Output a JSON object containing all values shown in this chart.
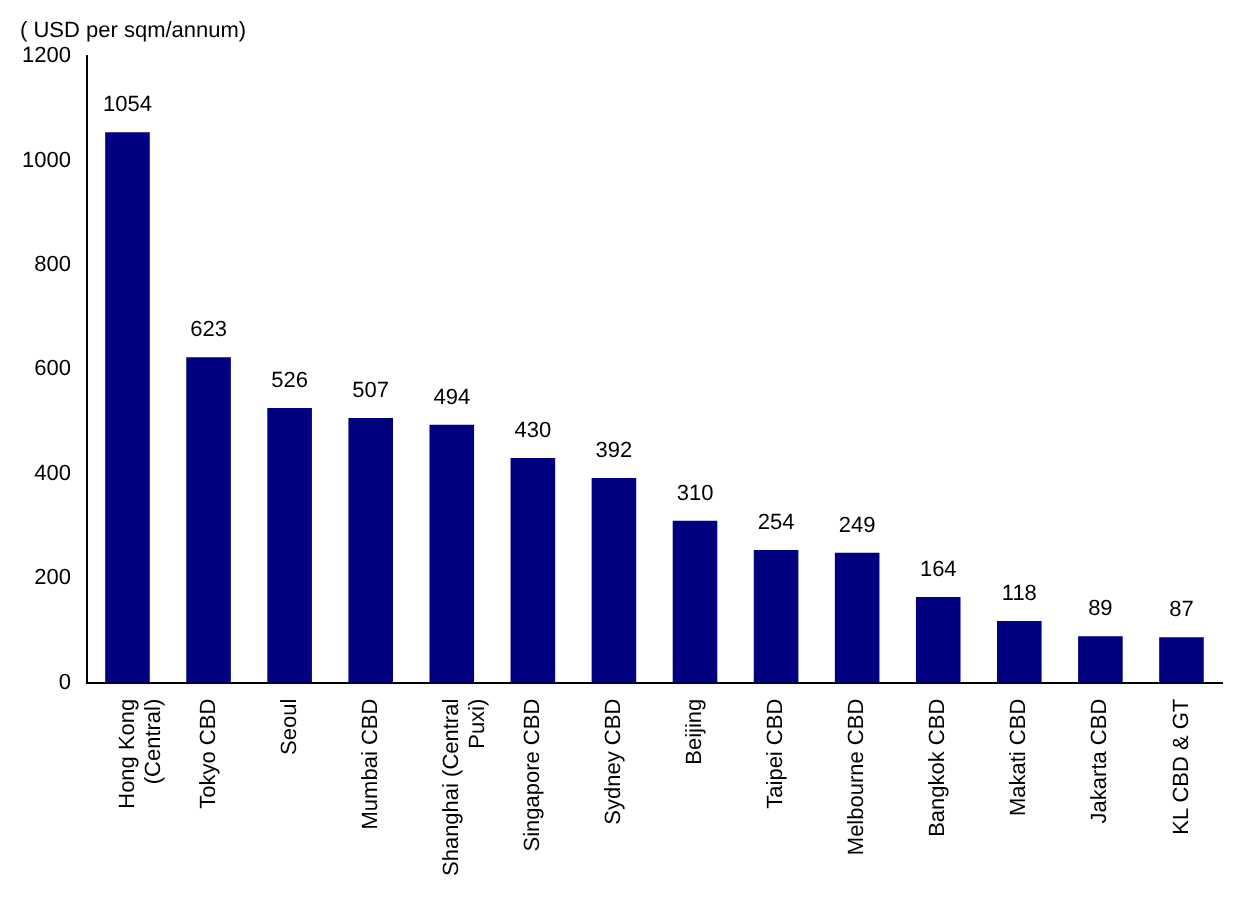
{
  "chart_data": {
    "type": "bar",
    "ylabel": "( USD per sqm/annum)",
    "categories": [
      "Hong Kong (Central)",
      "Tokyo CBD",
      "Seoul",
      "Mumbai CBD",
      "Shanghai (Central Puxi)",
      "Singapore CBD",
      "Sydney CBD",
      "Beijing",
      "Taipei CBD",
      "Melbourne CBD",
      "Bangkok CBD",
      "Makati CBD",
      "Jakarta CBD",
      "KL CBD & GT"
    ],
    "values": [
      1054,
      623,
      526,
      507,
      494,
      430,
      392,
      310,
      254,
      249,
      164,
      118,
      89,
      87
    ],
    "color": "#000080",
    "ylim": [
      0,
      1200
    ],
    "yticks": [
      0,
      200,
      400,
      600,
      800,
      1000,
      1200
    ],
    "grid": false,
    "legend": false,
    "data_labels": true
  }
}
